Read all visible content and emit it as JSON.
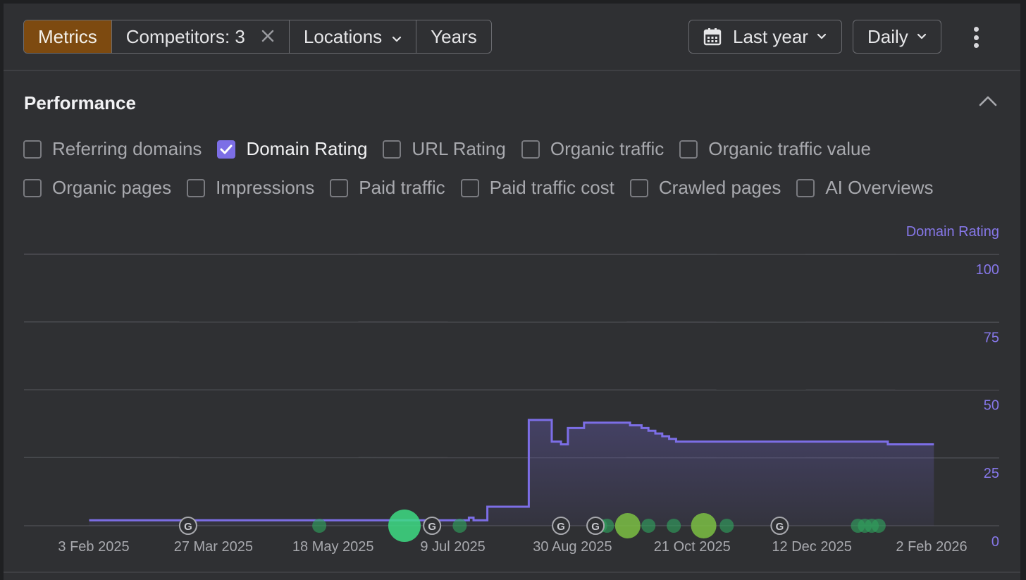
{
  "toolbar": {
    "tabs": {
      "metrics": "Metrics",
      "competitors": "Competitors: 3",
      "locations": "Locations",
      "years": "Years"
    },
    "date_range": "Last year",
    "granularity": "Daily",
    "more_icon": "kebab-icon"
  },
  "colors": {
    "accent": "#7c6ee6",
    "active_tab": "#7d4a10",
    "event_green": "#2f9e5c",
    "event_bright_green": "#3ddc84",
    "event_olive": "#7bc043"
  },
  "performance": {
    "title": "Performance",
    "collapse_icon": "chevron-up-icon",
    "metrics_row1": [
      {
        "label": "Referring domains",
        "checked": false
      },
      {
        "label": "Domain Rating",
        "checked": true
      },
      {
        "label": "URL Rating",
        "checked": false
      },
      {
        "label": "Organic traffic",
        "checked": false
      },
      {
        "label": "Organic traffic value",
        "checked": false
      }
    ],
    "metrics_row2": [
      {
        "label": "Organic pages",
        "checked": false
      },
      {
        "label": "Impressions",
        "checked": false
      },
      {
        "label": "Paid traffic",
        "checked": false
      },
      {
        "label": "Paid traffic cost",
        "checked": false
      },
      {
        "label": "Crawled pages",
        "checked": false
      },
      {
        "label": "AI Overviews",
        "checked": false
      }
    ]
  },
  "chart_data": {
    "type": "area",
    "ylabel": "Domain Rating",
    "ylim": [
      0,
      100
    ],
    "yticks": [
      "100",
      "75",
      "50",
      "25",
      "0"
    ],
    "xlim": [
      "2025-01-13",
      "2026-02-28"
    ],
    "xtick_labels": [
      {
        "date": "2025-02-03",
        "label": "3 Feb 2025"
      },
      {
        "date": "2025-03-27",
        "label": "27 Mar 2025"
      },
      {
        "date": "2025-05-18",
        "label": "18 May 2025"
      },
      {
        "date": "2025-07-09",
        "label": "9 Jul 2025"
      },
      {
        "date": "2025-08-30",
        "label": "30 Aug 2025"
      },
      {
        "date": "2025-10-21",
        "label": "21 Oct 2025"
      },
      {
        "date": "2025-12-12",
        "label": "12 Dec 2025"
      },
      {
        "date": "2026-02-02",
        "label": "2 Feb 2026"
      }
    ],
    "grid": true,
    "series": [
      {
        "name": "Domain Rating",
        "color": "#7c6ee6",
        "step": true,
        "points": [
          [
            "2025-02-01",
            2
          ],
          [
            "2025-07-15",
            2
          ],
          [
            "2025-07-16",
            3
          ],
          [
            "2025-07-18",
            2
          ],
          [
            "2025-07-23",
            2
          ],
          [
            "2025-07-24",
            7
          ],
          [
            "2025-08-10",
            7
          ],
          [
            "2025-08-11",
            39
          ],
          [
            "2025-08-20",
            39
          ],
          [
            "2025-08-21",
            31
          ],
          [
            "2025-08-25",
            30
          ],
          [
            "2025-08-27",
            30
          ],
          [
            "2025-08-28",
            36
          ],
          [
            "2025-09-03",
            36
          ],
          [
            "2025-09-04",
            38
          ],
          [
            "2025-09-23",
            38
          ],
          [
            "2025-09-24",
            37
          ],
          [
            "2025-09-29",
            36
          ],
          [
            "2025-10-02",
            35
          ],
          [
            "2025-10-05",
            34
          ],
          [
            "2025-10-08",
            33
          ],
          [
            "2025-10-11",
            32
          ],
          [
            "2025-10-14",
            31
          ],
          [
            "2026-01-13",
            31
          ],
          [
            "2026-01-14",
            30
          ],
          [
            "2026-02-03",
            30
          ]
        ]
      }
    ],
    "annotations": {
      "google_updates": [
        "2025-03-16",
        "2025-06-30",
        "2025-08-25",
        "2025-09-09",
        "2025-11-28"
      ],
      "events": [
        {
          "date": "2025-05-12",
          "size": "small",
          "color": "#2f9e5c"
        },
        {
          "date": "2025-06-18",
          "size": "large",
          "color": "#3ddc84"
        },
        {
          "date": "2025-07-12",
          "size": "small",
          "color": "#2f9e5c"
        },
        {
          "date": "2025-09-11",
          "size": "small",
          "color": "#2f9e5c"
        },
        {
          "date": "2025-09-14",
          "size": "small",
          "color": "#2f9e5c"
        },
        {
          "date": "2025-09-23",
          "size": "medium",
          "color": "#7bc043"
        },
        {
          "date": "2025-10-02",
          "size": "small",
          "color": "#2f9e5c"
        },
        {
          "date": "2025-10-13",
          "size": "small",
          "color": "#2f9e5c"
        },
        {
          "date": "2025-10-26",
          "size": "medium",
          "color": "#7bc043"
        },
        {
          "date": "2025-11-05",
          "size": "small",
          "color": "#2f9e5c"
        },
        {
          "date": "2026-01-01",
          "size": "small",
          "color": "#2f9e5c"
        },
        {
          "date": "2026-01-04",
          "size": "small",
          "color": "#2f9e5c"
        },
        {
          "date": "2026-01-07",
          "size": "small",
          "color": "#2f9e5c"
        },
        {
          "date": "2026-01-10",
          "size": "small",
          "color": "#2f9e5c"
        }
      ]
    }
  }
}
